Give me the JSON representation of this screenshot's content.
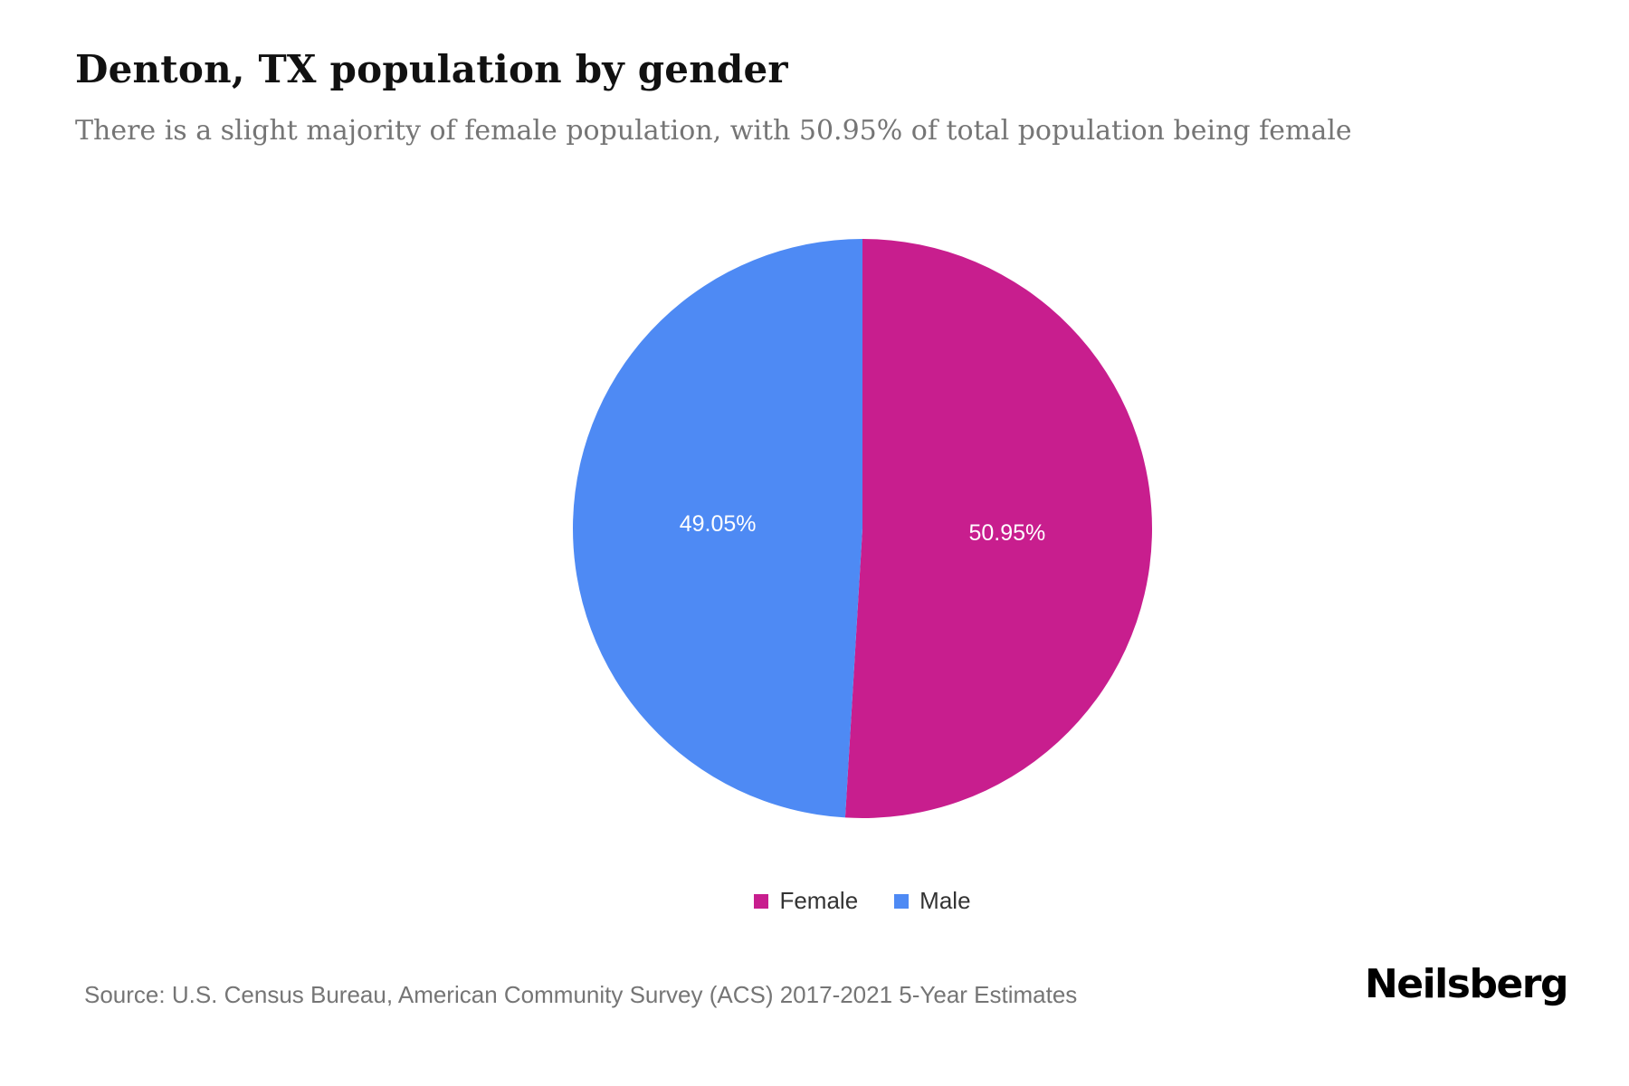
{
  "header": {
    "title": "Denton, TX population by gender",
    "subtitle": "There is a slight majority of female population, with 50.95% of total population being female"
  },
  "chart_data": {
    "type": "pie",
    "labels": [
      "Female",
      "Male"
    ],
    "values": [
      50.95,
      49.05
    ],
    "display_labels": [
      "50.95%",
      "49.05%"
    ],
    "colors": [
      "#C81E8E",
      "#4E8AF4"
    ],
    "label_color": "#ffffff",
    "start_angle_deg": -90,
    "direction": "clockwise",
    "legend_position": "bottom",
    "title": "Denton, TX population by gender"
  },
  "footer": {
    "source": "Source: U.S. Census Bureau, American Community Survey (ACS) 2017-2021 5-Year Estimates",
    "logo": "Neilsberg"
  }
}
